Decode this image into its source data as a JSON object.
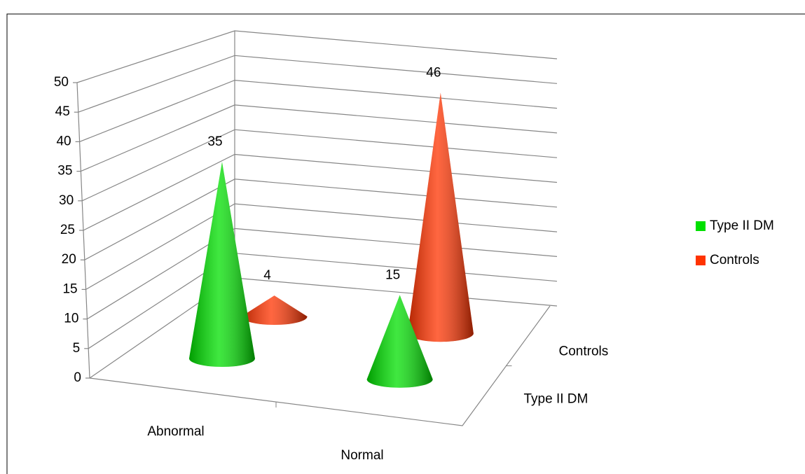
{
  "chart_data": {
    "type": "cone3d",
    "categories": [
      "Abnormal",
      "Normal"
    ],
    "series": [
      {
        "name": "Type II DM",
        "color": "#00e000",
        "values": [
          35,
          15
        ]
      },
      {
        "name": "Controls",
        "color": "#ff3300",
        "values": [
          4,
          46
        ]
      }
    ],
    "ylim": [
      0,
      50
    ],
    "yticks": [
      0,
      5,
      10,
      15,
      20,
      25,
      30,
      35,
      40,
      45,
      50
    ],
    "grid": true,
    "legend": "right"
  }
}
